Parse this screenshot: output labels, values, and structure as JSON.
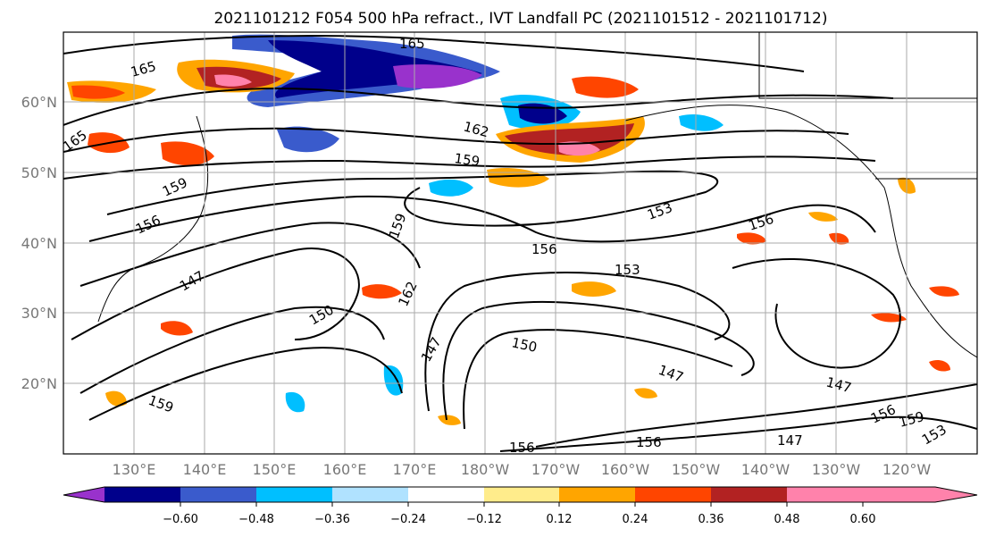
{
  "title": "2021101212 F054 500 hPa refract., IVT Landfall PC (2021101512 - 2021101712)",
  "lat_labels": [
    "60°N",
    "50°N",
    "40°N",
    "30°N",
    "20°N"
  ],
  "lon_labels": [
    "130°E",
    "140°E",
    "150°E",
    "160°E",
    "170°E",
    "180°W",
    "170°W",
    "160°W",
    "150°W",
    "140°W",
    "130°W",
    "120°W"
  ],
  "colorbar": {
    "colors": [
      "#9932cc",
      "#00008b",
      "#3a5bcc",
      "#00bfff",
      "#b0e2ff",
      "#ffffff",
      "#ffec8b",
      "#ffa500",
      "#ff4500",
      "#b22222",
      "#ff82ab"
    ],
    "tick_labels": [
      "−0.60",
      "−0.48",
      "−0.36",
      "−0.24",
      "−0.12",
      "0.12",
      "0.24",
      "0.36",
      "0.48",
      "0.60"
    ]
  },
  "contour_labels": [
    "165",
    "162",
    "159",
    "156",
    "153",
    "150",
    "147"
  ]
}
